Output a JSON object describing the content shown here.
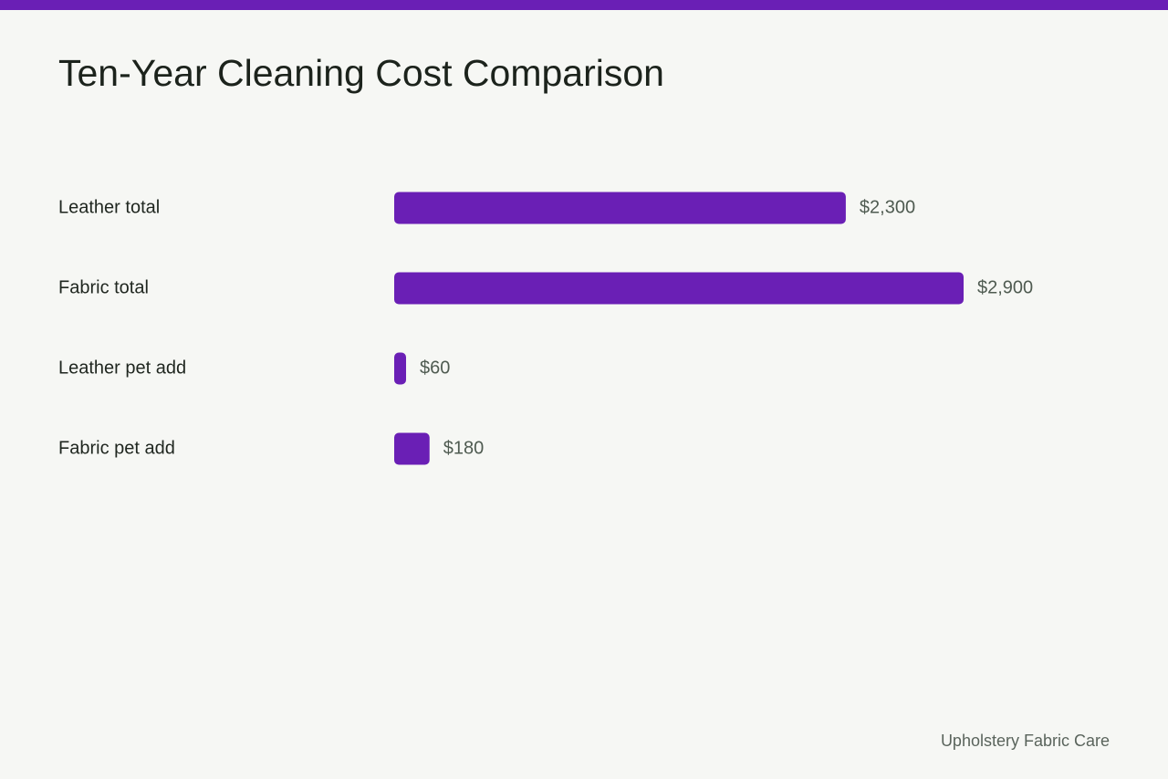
{
  "colors": {
    "accent": "#6a1fb5",
    "background": "#f6f7f4"
  },
  "footer": {
    "source": "Upholstery Fabric Care"
  },
  "chart_data": {
    "type": "bar",
    "orientation": "horizontal",
    "title": "Ten-Year Cleaning Cost Comparison",
    "categories": [
      "Leather total",
      "Fabric total",
      "Leather pet add",
      "Fabric pet add"
    ],
    "values": [
      2300,
      2900,
      60,
      180
    ],
    "value_labels": [
      "$2,300",
      "$2,900",
      "$60",
      "$180"
    ],
    "unit": "USD",
    "xlim": [
      0,
      2900
    ],
    "grid": false,
    "legend": "none"
  }
}
